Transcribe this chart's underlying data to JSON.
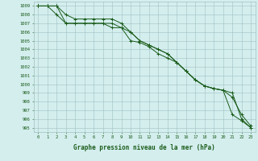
{
  "x": [
    0,
    1,
    2,
    3,
    4,
    5,
    6,
    7,
    8,
    9,
    10,
    11,
    12,
    13,
    14,
    15,
    16,
    17,
    18,
    19,
    20,
    21,
    22,
    23
  ],
  "series": [
    [
      1009.0,
      1009.0,
      1008.0,
      1007.0,
      1007.0,
      1007.0,
      1007.0,
      1007.0,
      1006.5,
      1006.5,
      1006.0,
      1005.0,
      1004.5,
      1004.0,
      1003.5,
      1002.5,
      1001.5,
      1000.5,
      999.8,
      999.5,
      999.3,
      998.5,
      996.5,
      995.2
    ],
    [
      1009.0,
      1009.0,
      1009.0,
      1008.0,
      1007.5,
      1007.5,
      1007.5,
      1007.5,
      1007.5,
      1007.0,
      1006.0,
      1005.0,
      1004.5,
      1004.0,
      1003.5,
      1002.5,
      1001.5,
      1000.5,
      999.8,
      999.5,
      999.3,
      999.0,
      996.0,
      995.0
    ],
    [
      1009.0,
      1009.0,
      1009.0,
      1007.0,
      1007.0,
      1007.0,
      1007.0,
      1007.0,
      1007.0,
      1006.5,
      1005.0,
      1004.8,
      1004.3,
      1003.5,
      1003.0,
      1002.5,
      1001.5,
      1000.5,
      999.8,
      999.5,
      999.3,
      996.5,
      995.8,
      995.0
    ]
  ],
  "line_color": "#1a5c1a",
  "marker": "+",
  "markersize": 3.0,
  "linewidth": 0.7,
  "markeredgewidth": 0.7,
  "ylim": [
    994.5,
    1009.5
  ],
  "yticks": [
    995,
    996,
    997,
    998,
    999,
    1000,
    1001,
    1002,
    1003,
    1004,
    1005,
    1006,
    1007,
    1008,
    1009
  ],
  "xticks": [
    0,
    1,
    2,
    3,
    4,
    5,
    6,
    7,
    8,
    9,
    10,
    11,
    12,
    13,
    14,
    15,
    16,
    17,
    18,
    19,
    20,
    21,
    22,
    23
  ],
  "xlabel": "Graphe pression niveau de la mer (hPa)",
  "bg_color": "#d4eeee",
  "grid_color": "#a0c0c0",
  "text_color": "#1a5c1a",
  "tick_fontsize": 4.0,
  "xlabel_fontsize": 5.5
}
